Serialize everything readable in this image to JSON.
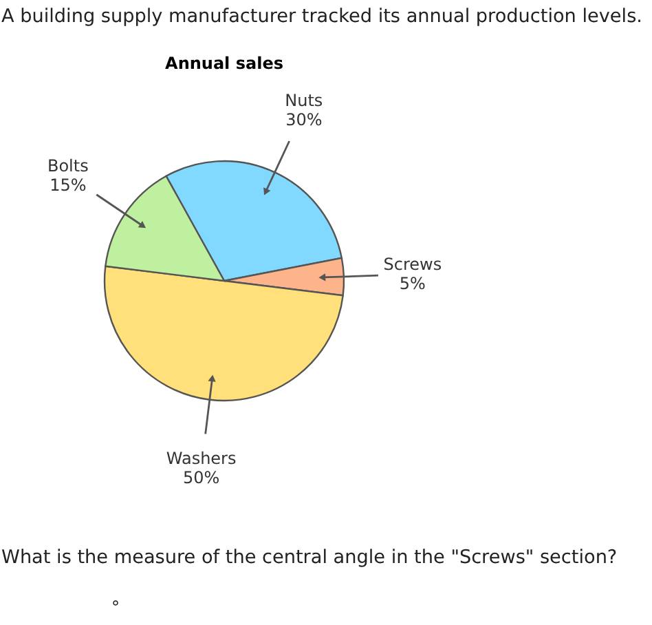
{
  "chart_data": {
    "type": "pie",
    "title": "Annual sales",
    "categories": [
      "Nuts",
      "Screws",
      "Washers",
      "Bolts"
    ],
    "values": [
      30,
      5,
      50,
      15
    ],
    "value_labels": [
      "30%",
      "5%",
      "50%",
      "15%"
    ],
    "colors": [
      "#82d9ff",
      "#fdb48a",
      "#ffe07a",
      "#bff0a0"
    ],
    "annotations": [
      "A building supply manufacturer tracked its annual production levels.",
      "What is the measure of the central angle in the \"Screws\" section?",
      "°"
    ]
  }
}
